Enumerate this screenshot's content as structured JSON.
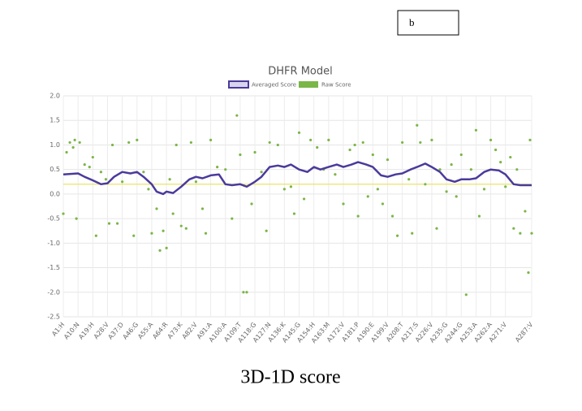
{
  "panel_label": "b",
  "caption": "3D-1D score",
  "chart_data": {
    "type": "line",
    "title": "DHFR Model",
    "xlim": [
      1,
      287
    ],
    "xticks": [
      {
        "value": 1,
        "label": "A1:H"
      },
      {
        "value": 10,
        "label": "A10:N"
      },
      {
        "value": 19,
        "label": "A19:H"
      },
      {
        "value": 28,
        "label": "A28:V"
      },
      {
        "value": 37,
        "label": "A37:D"
      },
      {
        "value": 46,
        "label": "A46:G"
      },
      {
        "value": 55,
        "label": "A55:A"
      },
      {
        "value": 64,
        "label": "A64:R"
      },
      {
        "value": 73,
        "label": "A73:K"
      },
      {
        "value": 82,
        "label": "A82:V"
      },
      {
        "value": 91,
        "label": "A91:A"
      },
      {
        "value": 100,
        "label": "A100:A"
      },
      {
        "value": 109,
        "label": "A109:T"
      },
      {
        "value": 118,
        "label": "A118:G"
      },
      {
        "value": 127,
        "label": "A127:N"
      },
      {
        "value": 136,
        "label": "A136:K"
      },
      {
        "value": 145,
        "label": "A145:G"
      },
      {
        "value": 154,
        "label": "A154:H"
      },
      {
        "value": 163,
        "label": "A163:M"
      },
      {
        "value": 172,
        "label": "A172:V"
      },
      {
        "value": 181,
        "label": "A181:P"
      },
      {
        "value": 190,
        "label": "A190:E"
      },
      {
        "value": 199,
        "label": "A199:V"
      },
      {
        "value": 208,
        "label": "A208:T"
      },
      {
        "value": 217,
        "label": "A217:S"
      },
      {
        "value": 226,
        "label": "A226:V"
      },
      {
        "value": 235,
        "label": "A235:G"
      },
      {
        "value": 244,
        "label": "A244:G"
      },
      {
        "value": 253,
        "label": "A253:A"
      },
      {
        "value": 262,
        "label": "A262:A"
      },
      {
        "value": 271,
        "label": "A271:V"
      },
      {
        "value": 287,
        "label": "A287:V"
      }
    ],
    "ylim": [
      -2.5,
      2
    ],
    "yticks": [
      {
        "value": 2,
        "label": "2.0"
      },
      1.5,
      {
        "value": 1,
        "label": "1.0"
      },
      0.5,
      {
        "value": 0,
        "label": "0.0"
      },
      -0.5,
      {
        "value": -1,
        "label": "-1.0"
      },
      -1.5,
      {
        "value": -2,
        "label": "-2.0"
      },
      -2.5
    ],
    "grid": true,
    "reference_line": {
      "value": 0.2,
      "color": "#e8e25a"
    },
    "series": [
      {
        "name": "Averaged Score",
        "type": "line",
        "color": "#4b3a9c",
        "x": [
          1,
          10,
          14,
          19,
          24,
          28,
          32,
          37,
          42,
          46,
          50,
          55,
          58,
          62,
          64,
          68,
          73,
          78,
          82,
          86,
          91,
          96,
          100,
          104,
          109,
          113,
          118,
          122,
          127,
          132,
          136,
          140,
          145,
          150,
          154,
          158,
          163,
          168,
          172,
          177,
          181,
          186,
          190,
          195,
          199,
          204,
          208,
          213,
          217,
          222,
          226,
          231,
          235,
          240,
          244,
          249,
          253,
          258,
          262,
          267,
          271,
          276,
          280,
          287
        ],
        "values": [
          0.4,
          0.42,
          0.35,
          0.28,
          0.2,
          0.22,
          0.35,
          0.45,
          0.42,
          0.45,
          0.35,
          0.2,
          0.05,
          0.0,
          0.05,
          0.02,
          0.15,
          0.3,
          0.35,
          0.32,
          0.38,
          0.4,
          0.2,
          0.18,
          0.2,
          0.15,
          0.25,
          0.35,
          0.55,
          0.58,
          0.55,
          0.6,
          0.5,
          0.45,
          0.55,
          0.5,
          0.55,
          0.6,
          0.55,
          0.6,
          0.65,
          0.6,
          0.55,
          0.38,
          0.35,
          0.4,
          0.42,
          0.5,
          0.55,
          0.62,
          0.55,
          0.45,
          0.3,
          0.25,
          0.3,
          0.3,
          0.32,
          0.45,
          0.5,
          0.48,
          0.4,
          0.2,
          0.18,
          0.18
        ]
      },
      {
        "name": "Raw Score",
        "type": "scatter",
        "color": "#7ab648",
        "x": [
          1,
          3,
          5,
          7,
          8,
          9,
          11,
          14,
          17,
          19,
          21,
          24,
          27,
          29,
          31,
          34,
          37,
          41,
          44,
          46,
          50,
          53,
          55,
          58,
          60,
          62,
          64,
          66,
          68,
          70,
          73,
          76,
          79,
          82,
          86,
          88,
          91,
          95,
          100,
          104,
          107,
          109,
          111,
          113,
          116,
          118,
          122,
          125,
          127,
          132,
          136,
          140,
          142,
          145,
          148,
          152,
          156,
          160,
          163,
          167,
          172,
          176,
          179,
          181,
          184,
          187,
          190,
          193,
          196,
          199,
          202,
          205,
          208,
          212,
          214,
          217,
          219,
          222,
          226,
          229,
          231,
          235,
          238,
          241,
          244,
          247,
          250,
          253,
          255,
          258,
          262,
          265,
          268,
          271,
          274,
          276,
          278,
          280,
          283,
          285,
          286,
          287
        ],
        "values": [
          -0.4,
          0.85,
          1.05,
          0.95,
          1.1,
          -0.5,
          1.05,
          0.6,
          0.55,
          0.75,
          -0.85,
          0.45,
          0.3,
          -0.6,
          1.0,
          -0.6,
          0.25,
          1.05,
          -0.85,
          1.1,
          0.45,
          0.1,
          -0.8,
          -0.3,
          -1.15,
          -0.75,
          -1.1,
          0.3,
          -0.4,
          1.0,
          -0.65,
          -0.7,
          1.05,
          0.25,
          -0.3,
          -0.8,
          1.1,
          0.55,
          0.5,
          -0.5,
          1.6,
          0.8,
          -2.0,
          -2.0,
          -0.2,
          0.85,
          0.45,
          -0.75,
          1.05,
          1.0,
          0.1,
          0.15,
          -0.4,
          1.25,
          -0.1,
          1.1,
          0.95,
          0.5,
          1.1,
          0.4,
          -0.2,
          0.9,
          1.0,
          -0.45,
          1.05,
          -0.05,
          0.8,
          0.1,
          -0.2,
          0.7,
          -0.45,
          -0.85,
          1.05,
          0.3,
          -0.8,
          1.4,
          1.05,
          0.2,
          1.1,
          -0.7,
          0.5,
          0.05,
          0.6,
          -0.05,
          0.8,
          -2.05,
          0.5,
          1.3,
          -0.45,
          0.1,
          1.1,
          0.9,
          0.65,
          0.15,
          0.75,
          -0.7,
          0.5,
          -0.8,
          -0.35,
          -1.6,
          1.1,
          -0.8
        ]
      }
    ]
  }
}
